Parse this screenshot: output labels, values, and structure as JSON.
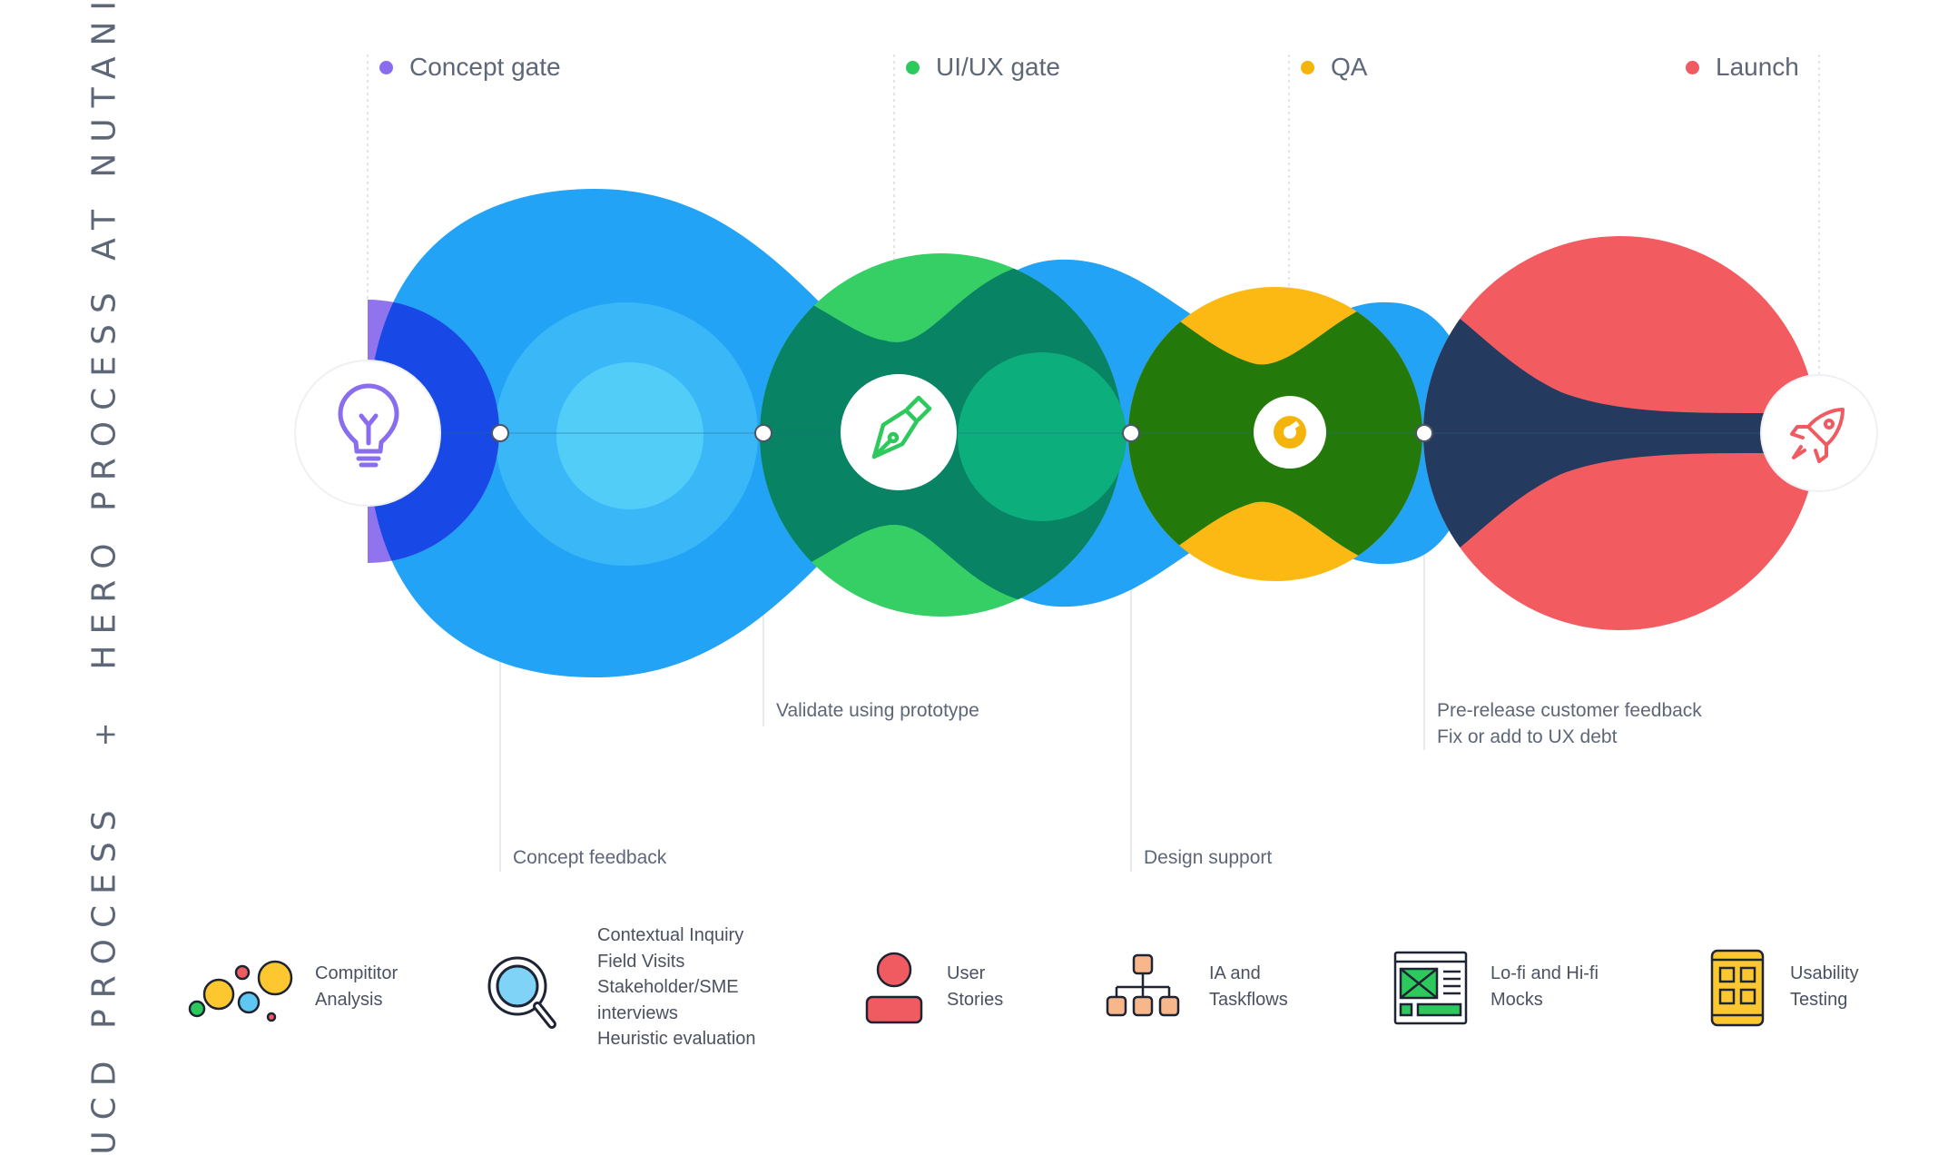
{
  "side_title": {
    "part1": "UCD PROCESS",
    "plus": "+",
    "part2": "HERO PROCESS AT NUTANIX"
  },
  "gates": [
    {
      "label": "Concept gate",
      "color": "#8a6cef"
    },
    {
      "label": "UI/UX gate",
      "color": "#2ec95c"
    },
    {
      "label": "QA",
      "color": "#f5b40b"
    },
    {
      "label": "Launch",
      "color": "#ef5b61"
    }
  ],
  "milestones": [
    {
      "icon": "lightbulb-icon",
      "color": "#8a6cef"
    },
    {
      "icon": "pen-nib-icon",
      "color": "#2ec95c"
    },
    {
      "icon": "wrench-icon",
      "color": "#f5b40b"
    },
    {
      "icon": "rocket-icon",
      "color": "#ef5b61"
    }
  ],
  "annotations": {
    "concept_feedback": "Concept feedback",
    "validate_prototype": "Validate using prototype",
    "design_support": "Design support",
    "prerelease_line1": "Pre-release customer feedback",
    "prerelease_line2": "Fix or add to UX debt"
  },
  "colors": {
    "blue": "#23a3f5",
    "green": "#36cf66",
    "yellow": "#fdb913",
    "red": "#f25c61",
    "purple": "#8a6cef",
    "text": "#5d6777"
  },
  "tools": [
    {
      "icon": "bubbles-icon",
      "lines": [
        "Compititor",
        "Analysis"
      ]
    },
    {
      "icon": "magnifier-icon",
      "lines": [
        "Contextual Inquiry",
        "Field Visits",
        "Stakeholder/SME",
        "interviews",
        "Heuristic evaluation"
      ]
    },
    {
      "icon": "user-icon",
      "lines": [
        "User",
        "Stories"
      ]
    },
    {
      "icon": "hierarchy-icon",
      "lines": [
        "IA and",
        "Taskflows"
      ]
    },
    {
      "icon": "wireframe-icon",
      "lines": [
        "Lo-fi and Hi-fi",
        "Mocks"
      ]
    },
    {
      "icon": "mobile-grid-icon",
      "lines": [
        "Usability",
        "Testing"
      ]
    }
  ]
}
